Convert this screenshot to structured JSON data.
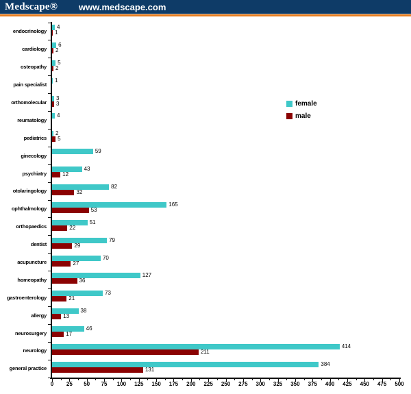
{
  "header": {
    "logo": "Medscape®",
    "url": "www.medscape.com"
  },
  "legend": {
    "female": "female",
    "male": "male"
  },
  "colors": {
    "header_navy": "#0E3B67",
    "accent_orange": "#E87D1E",
    "female_bar": "#3FC8C8",
    "male_bar": "#8B0202"
  },
  "chart_data": {
    "type": "bar",
    "orientation": "horizontal",
    "title": "",
    "xlabel": "",
    "ylabel": "",
    "xlim": [
      0,
      500
    ],
    "xticks": [
      0,
      25,
      50,
      75,
      100,
      125,
      150,
      175,
      200,
      225,
      250,
      275,
      300,
      325,
      350,
      375,
      400,
      425,
      450,
      475,
      500
    ],
    "grid": false,
    "legend_position": "middle-right",
    "categories_order": "top-to-bottom",
    "categories": [
      "endocrinology",
      "cardiology",
      "osteopathy",
      "pain specialist",
      "orthomolecular",
      "reumatology",
      "pediatrics",
      "ginecology",
      "psychiatry",
      "otolaringology",
      "ophthalmology",
      "orthopaedics",
      "dentist",
      "acupuncture",
      "homeopathy",
      "gastroenterology",
      "allergy",
      "neurosurgery",
      "neurology",
      "general practice"
    ],
    "series": [
      {
        "name": "female",
        "color": "#3FC8C8",
        "values": [
          4,
          6,
          5,
          1,
          3,
          4,
          2,
          59,
          43,
          82,
          165,
          51,
          79,
          70,
          127,
          73,
          38,
          46,
          414,
          384
        ]
      },
      {
        "name": "male",
        "color": "#8B0202",
        "values": [
          1,
          2,
          2,
          null,
          3,
          null,
          5,
          null,
          12,
          32,
          53,
          22,
          29,
          27,
          36,
          21,
          13,
          17,
          211,
          131
        ]
      }
    ]
  }
}
